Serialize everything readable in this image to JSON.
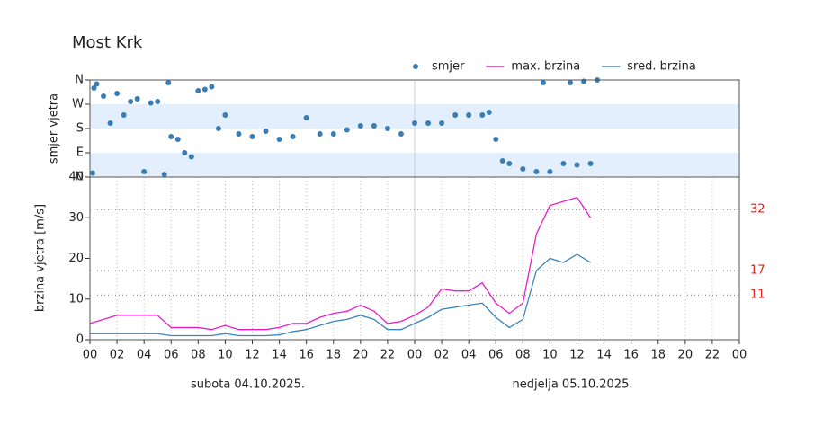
{
  "chart_data": [
    {
      "type": "scatter",
      "title": "Most Krk",
      "ylabel": "smjer vjetra",
      "xlim": [
        0,
        48
      ],
      "ylim": [
        0,
        360
      ],
      "yticks": [
        {
          "value": 0,
          "label": "N"
        },
        {
          "value": 90,
          "label": "E"
        },
        {
          "value": 180,
          "label": "S"
        },
        {
          "value": 270,
          "label": "W"
        },
        {
          "value": 360,
          "label": "N"
        }
      ],
      "band_color": "#e3effc",
      "series": [
        {
          "name": "smjer",
          "color": "#3a7db5",
          "x": [
            0.2,
            0.3,
            0.5,
            1,
            1.5,
            2,
            2.5,
            3,
            3.5,
            4,
            4.5,
            5,
            5.5,
            5.8,
            6,
            6.5,
            7,
            7.5,
            8,
            8.5,
            9,
            9.5,
            10,
            11,
            12,
            13,
            14,
            15,
            16,
            17,
            18,
            19,
            20,
            21,
            22,
            23,
            24,
            25,
            26,
            27,
            28,
            29,
            29.5,
            30,
            30.5,
            31,
            32,
            33,
            33.5,
            34,
            35,
            35.5,
            36,
            36.5,
            37,
            37.5
          ],
          "values": [
            15,
            330,
            345,
            300,
            200,
            310,
            230,
            280,
            290,
            20,
            275,
            280,
            10,
            350,
            150,
            140,
            90,
            75,
            320,
            325,
            335,
            180,
            230,
            160,
            150,
            170,
            140,
            150,
            220,
            160,
            160,
            175,
            190,
            190,
            180,
            160,
            200,
            200,
            200,
            230,
            230,
            230,
            240,
            140,
            60,
            50,
            30,
            20,
            350,
            20,
            50,
            350,
            45,
            355,
            50,
            360
          ]
        }
      ]
    },
    {
      "type": "line",
      "ylabel": "brzina vjetra [m/s]",
      "xlim": [
        0,
        48
      ],
      "ylim": [
        0,
        40
      ],
      "yticks": [
        0,
        10,
        20,
        30,
        40
      ],
      "xticks": [
        {
          "value": 0,
          "label": "00"
        },
        {
          "value": 2,
          "label": "02"
        },
        {
          "value": 4,
          "label": "04"
        },
        {
          "value": 6,
          "label": "06"
        },
        {
          "value": 8,
          "label": "08"
        },
        {
          "value": 10,
          "label": "10"
        },
        {
          "value": 12,
          "label": "12"
        },
        {
          "value": 14,
          "label": "14"
        },
        {
          "value": 16,
          "label": "16"
        },
        {
          "value": 18,
          "label": "18"
        },
        {
          "value": 20,
          "label": "20"
        },
        {
          "value": 22,
          "label": "22"
        },
        {
          "value": 24,
          "label": "00"
        },
        {
          "value": 26,
          "label": "02"
        },
        {
          "value": 28,
          "label": "04"
        },
        {
          "value": 30,
          "label": "06"
        },
        {
          "value": 32,
          "label": "08"
        },
        {
          "value": 34,
          "label": "10"
        },
        {
          "value": 36,
          "label": "12"
        },
        {
          "value": 38,
          "label": "14"
        },
        {
          "value": 40,
          "label": "16"
        },
        {
          "value": 42,
          "label": "18"
        },
        {
          "value": 44,
          "label": "20"
        },
        {
          "value": 46,
          "label": "22"
        },
        {
          "value": 48,
          "label": "00"
        }
      ],
      "reference_lines": [
        32,
        17,
        11
      ],
      "reference_color": "#e0241b",
      "annotations": [
        "subota  04.10.2025.",
        "nedjelja  05.10.2025."
      ],
      "x": [
        0,
        1,
        2,
        3,
        4,
        5,
        6,
        7,
        8,
        9,
        10,
        11,
        12,
        13,
        14,
        15,
        16,
        17,
        18,
        19,
        20,
        21,
        22,
        23,
        24,
        25,
        26,
        27,
        28,
        29,
        30,
        31,
        32,
        33,
        34,
        35,
        36,
        37
      ],
      "series": [
        {
          "name": "max. brzina",
          "color": "#e81ec6",
          "values": [
            4,
            5,
            6,
            6,
            6,
            6,
            3,
            3,
            3,
            2.5,
            3.5,
            2.5,
            2.5,
            2.5,
            3,
            4,
            4,
            5.5,
            6.5,
            7,
            8.5,
            7,
            4,
            4.5,
            6,
            8,
            12.5,
            12,
            12,
            14,
            9,
            6.5,
            9,
            26,
            33,
            34,
            35,
            30
          ]
        },
        {
          "name": "sred. brzina",
          "color": "#3a84bd",
          "values": [
            1.5,
            1.5,
            1.5,
            1.5,
            1.5,
            1.5,
            1,
            1,
            1,
            1,
            1.5,
            1,
            1,
            1,
            1.2,
            2,
            2.5,
            3.5,
            4.5,
            5,
            6,
            5,
            2.5,
            2.5,
            4,
            5.5,
            7.5,
            8,
            8.5,
            9,
            5.5,
            3,
            5,
            17,
            20,
            19,
            21,
            19
          ]
        }
      ]
    }
  ]
}
